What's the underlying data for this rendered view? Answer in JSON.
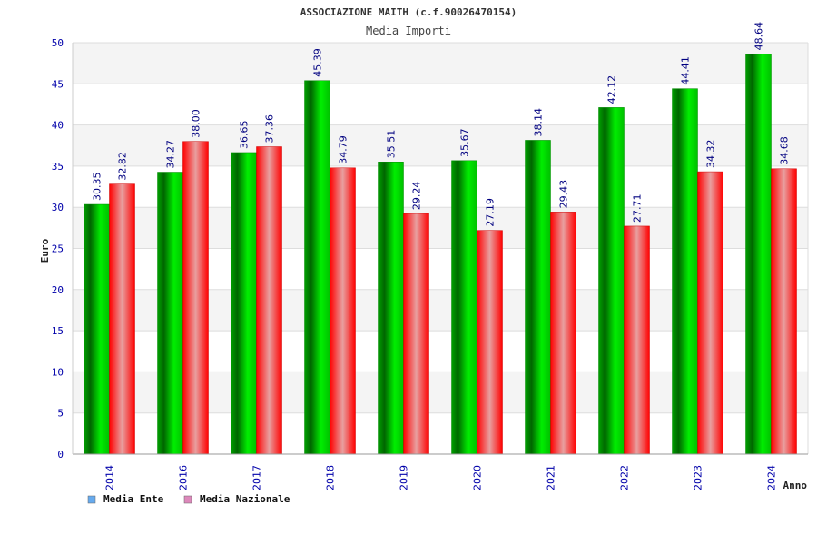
{
  "chart_data": {
    "type": "bar",
    "title": "ASSOCIAZIONE MAITH (c.f.90026470154)",
    "subtitle": "Media Importi",
    "xlabel": "Anno",
    "ylabel": "Euro",
    "ylim": [
      0,
      50
    ],
    "ytick_step": 5,
    "yticks": [
      "0",
      "5",
      "10",
      "15",
      "20",
      "25",
      "30",
      "35",
      "40",
      "45",
      "50"
    ],
    "grid": true,
    "legend_position": "bottom-left",
    "categories": [
      "2014",
      "2016",
      "2017",
      "2018",
      "2019",
      "2020",
      "2021",
      "2022",
      "2023",
      "2024"
    ],
    "series": [
      {
        "name": "Media Ente",
        "color": "#00c000",
        "legend_color": "#66aaee",
        "values": [
          30.35,
          34.27,
          36.65,
          45.39,
          35.51,
          35.67,
          38.14,
          42.12,
          44.41,
          48.64
        ],
        "labels": [
          "30.35",
          "34.27",
          "36.65",
          "45.39",
          "35.51",
          "35.67",
          "38.14",
          "42.12",
          "44.41",
          "48.64"
        ]
      },
      {
        "name": "Media Nazionale",
        "color": "#ff0000",
        "legend_color": "#dd88bb",
        "values": [
          32.82,
          38.0,
          37.36,
          34.79,
          29.24,
          27.19,
          29.43,
          27.71,
          34.32,
          34.68
        ],
        "labels": [
          "32.82",
          "38.00",
          "37.36",
          "34.79",
          "29.24",
          "27.19",
          "29.43",
          "27.71",
          "34.32",
          "34.68"
        ]
      }
    ]
  }
}
